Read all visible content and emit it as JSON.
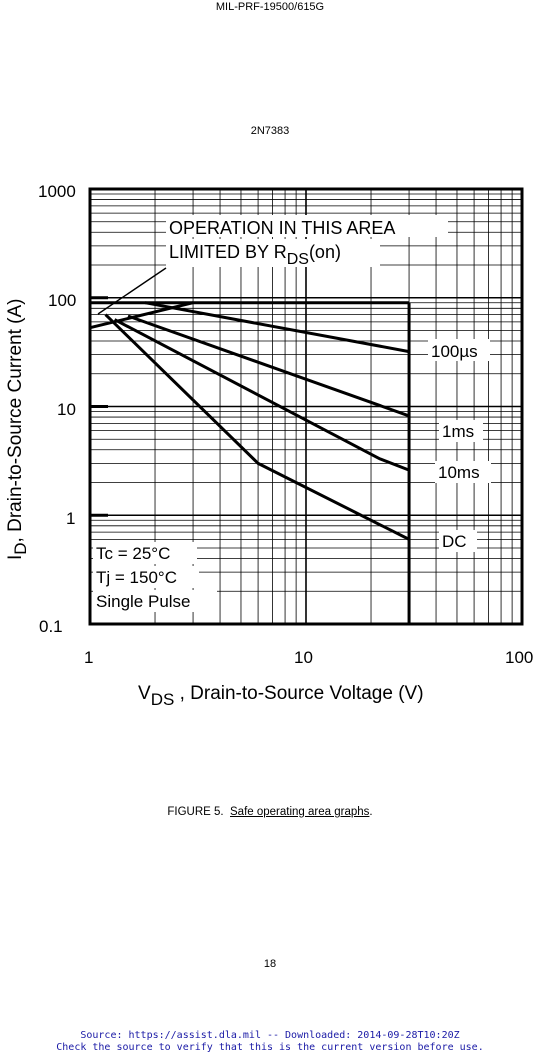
{
  "document": {
    "spec_number": "MIL-PRF-19500/615G",
    "part_number": "2N7383",
    "figure_label": "FIGURE 5.",
    "figure_title": "Safe operating area graphs",
    "figure_title_end": ".",
    "page_number": "18",
    "footer_line1": "Source: https://assist.dla.mil -- Downloaded: 2014-09-28T10:20Z",
    "footer_line2": "Check the source to verify that this is the current version before use."
  },
  "chart_data": {
    "type": "line",
    "x_scale": "log",
    "y_scale": "log",
    "xlim": [
      1,
      100
    ],
    "ylim": [
      0.1,
      1000
    ],
    "x_ticks": [
      "1",
      "10",
      "100"
    ],
    "y_ticks": [
      "1000",
      "100",
      "10",
      "1",
      "0.1"
    ],
    "x_label_main": "V",
    "x_label_sub": "DS",
    "x_label_rest": " , Drain-to-Source Voltage (V)",
    "y_label_main": "I",
    "y_label_sub": "D",
    "y_label_rest": ",  Drain-to-Source Current (A)",
    "annotation_line1": "OPERATION IN THIS AREA",
    "annotation_line2_a": "LIMITED BY R",
    "annotation_line2_sub": "DS",
    "annotation_line2_b": "(on)",
    "conditions": [
      "Tc = 25°C",
      "Tj = 150°C",
      "Single Pulse"
    ],
    "grid": true,
    "limit_current": 90,
    "limit_voltage": 30,
    "series": [
      {
        "name": "100µs",
        "x": [
          1.8,
          30
        ],
        "y": [
          90,
          32
        ]
      },
      {
        "name": "1ms",
        "x": [
          1.5,
          30
        ],
        "y": [
          68,
          8.2
        ]
      },
      {
        "name": "10ms",
        "x": [
          1.3,
          22,
          30
        ],
        "y": [
          63,
          3.3,
          2.6
        ]
      },
      {
        "name": "DC",
        "x": [
          1.18,
          6,
          30
        ],
        "y": [
          70,
          3.0,
          0.6
        ]
      },
      {
        "name": "",
        "x": [
          1.0,
          3.0
        ],
        "y": [
          53,
          90
        ]
      }
    ]
  }
}
